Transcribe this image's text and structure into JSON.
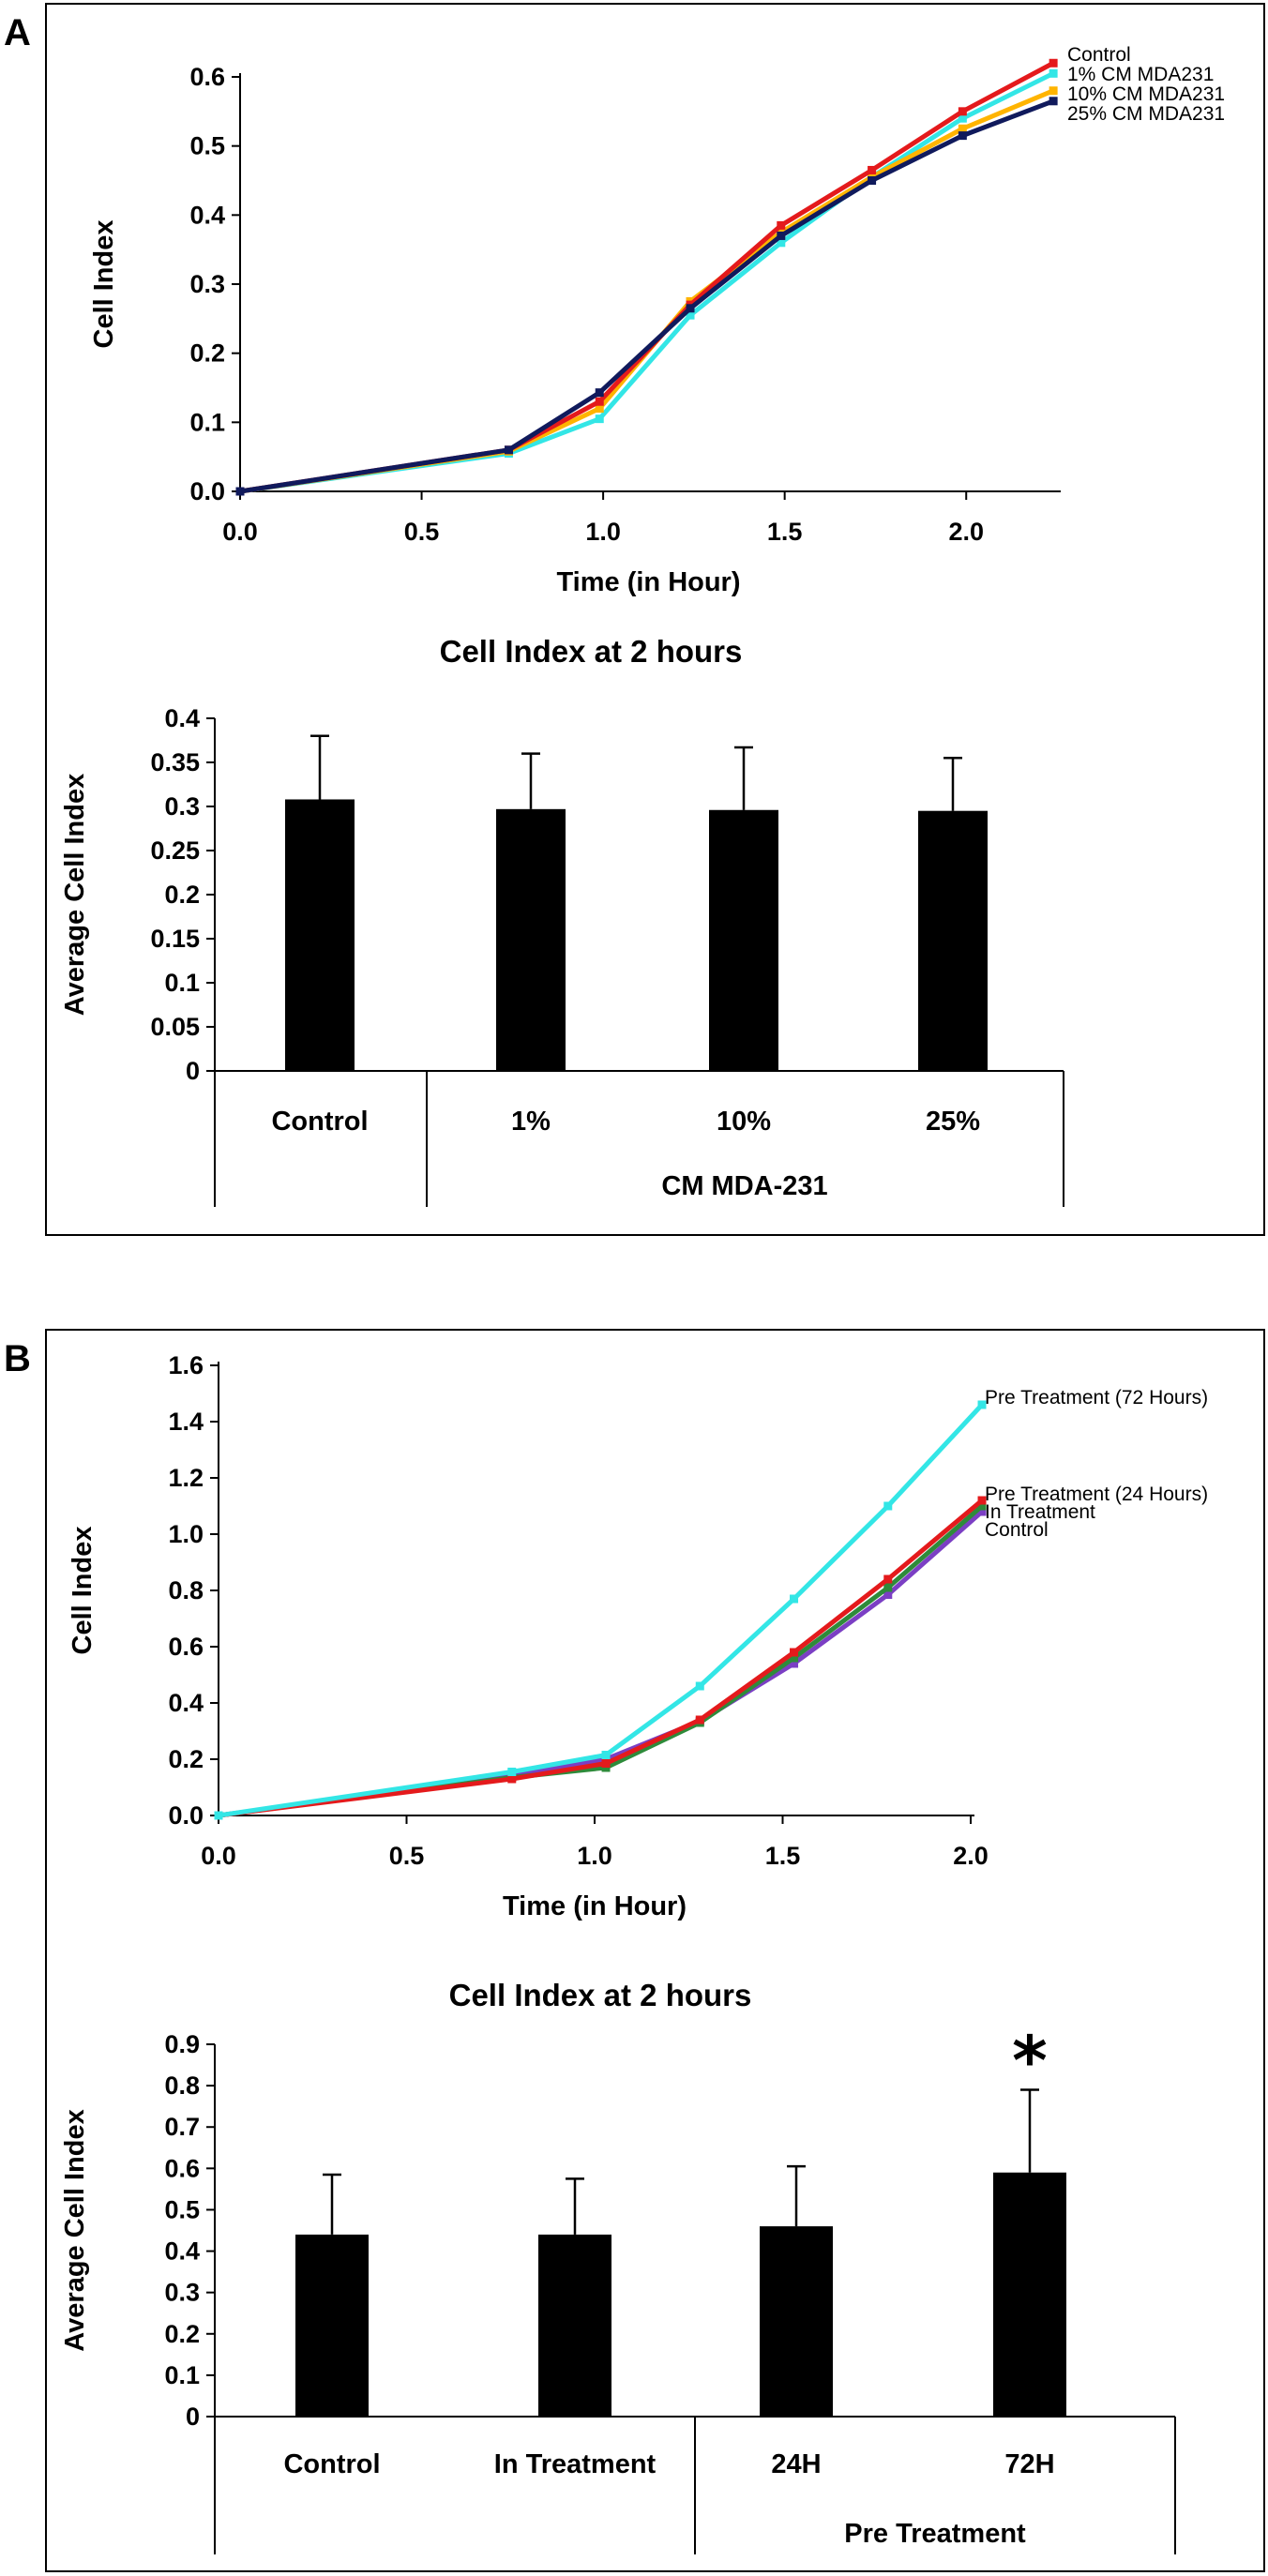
{
  "panel_labels": [
    "A",
    "B"
  ],
  "chart_data": [
    {
      "panel": "A",
      "type": "line",
      "title": "",
      "xlabel": "Time (in Hour)",
      "ylabel": "Cell Index",
      "xlim": [
        0,
        2.25
      ],
      "ylim": [
        0,
        0.6
      ],
      "xticks": [
        "0.0",
        "0.5",
        "1.0",
        "1.5",
        "2.0"
      ],
      "yticks": [
        "0.0",
        "0.1",
        "0.2",
        "0.3",
        "0.4",
        "0.5",
        "0.6"
      ],
      "series": [
        {
          "name": "Control",
          "color": "#e41a1c",
          "x": [
            0,
            0.74,
            0.99,
            1.24,
            1.49,
            1.74,
            1.99,
            2.24
          ],
          "y": [
            0.0,
            0.06,
            0.13,
            0.27,
            0.385,
            0.465,
            0.55,
            0.62
          ]
        },
        {
          "name": "1% CM MDA231",
          "color": "#33e6e6",
          "x": [
            0,
            0.74,
            0.99,
            1.24,
            1.49,
            1.74,
            1.99,
            2.24
          ],
          "y": [
            0.0,
            0.055,
            0.105,
            0.255,
            0.36,
            0.455,
            0.54,
            0.605
          ]
        },
        {
          "name": "10% CM MDA231",
          "color": "#ffb400",
          "x": [
            0,
            0.74,
            0.99,
            1.24,
            1.49,
            1.74,
            1.99,
            2.24
          ],
          "y": [
            0.0,
            0.058,
            0.12,
            0.275,
            0.375,
            0.455,
            0.525,
            0.58
          ]
        },
        {
          "name": "25% CM MDA231",
          "color": "#101a5c",
          "x": [
            0,
            0.74,
            0.99,
            1.24,
            1.49,
            1.74,
            1.99,
            2.24
          ],
          "y": [
            0.0,
            0.06,
            0.143,
            0.265,
            0.37,
            0.45,
            0.515,
            0.565
          ]
        }
      ]
    },
    {
      "panel": "A",
      "type": "bar",
      "title": "Cell Index at 2 hours",
      "xlabel": "",
      "ylabel": "Average Cell Index",
      "ylim": [
        0,
        0.4
      ],
      "yticks": [
        "0",
        "0.05",
        "0.1",
        "0.15",
        "0.2",
        "0.25",
        "0.3",
        "0.35",
        "0.4"
      ],
      "categories": [
        "Control",
        "1%",
        "10%",
        "25%"
      ],
      "values": [
        0.308,
        0.297,
        0.296,
        0.295
      ],
      "errors": [
        0.072,
        0.063,
        0.071,
        0.06
      ],
      "group_labels": [
        "CM MDA-231"
      ]
    },
    {
      "panel": "B",
      "type": "line",
      "title": "",
      "xlabel": "Time (in Hour)",
      "ylabel": "Cell Index",
      "xlim": [
        0,
        2.0
      ],
      "ylim": [
        0,
        1.6
      ],
      "xticks": [
        "0.0",
        "0.5",
        "1.0",
        "1.5",
        "2.0"
      ],
      "yticks": [
        "0.0",
        "0.2",
        "0.4",
        "0.6",
        "0.8",
        "1.0",
        "1.2",
        "1.4",
        "1.6"
      ],
      "series": [
        {
          "name": "Pre Treatment (72 Hours)",
          "color": "#33e6e6",
          "x": [
            0,
            0.78,
            1.03,
            1.28,
            1.53,
            1.78,
            2.03
          ],
          "y": [
            0.0,
            0.155,
            0.215,
            0.46,
            0.77,
            1.1,
            1.46
          ]
        },
        {
          "name": "Pre Treatment (24 Hours)",
          "color": "#e41a1c",
          "x": [
            0,
            0.78,
            1.03,
            1.28,
            1.53,
            1.78,
            2.03
          ],
          "y": [
            0.0,
            0.13,
            0.185,
            0.34,
            0.58,
            0.84,
            1.12
          ]
        },
        {
          "name": "In Treatment",
          "color": "#2e8b3a",
          "x": [
            0,
            0.78,
            1.03,
            1.28,
            1.53,
            1.78,
            2.03
          ],
          "y": [
            0.0,
            0.135,
            0.17,
            0.33,
            0.56,
            0.81,
            1.1
          ]
        },
        {
          "name": "Control",
          "color": "#7b3fc4",
          "x": [
            0,
            0.78,
            1.03,
            1.28,
            1.53,
            1.78,
            2.03
          ],
          "y": [
            0.0,
            0.14,
            0.2,
            0.335,
            0.54,
            0.785,
            1.08
          ]
        }
      ]
    },
    {
      "panel": "B",
      "type": "bar",
      "title": "Cell Index at 2 hours",
      "xlabel": "",
      "ylabel": "Average Cell Index",
      "ylim": [
        0,
        0.9
      ],
      "yticks": [
        "0",
        "0.1",
        "0.2",
        "0.3",
        "0.4",
        "0.5",
        "0.6",
        "0.7",
        "0.8",
        "0.9"
      ],
      "categories": [
        "Control",
        "In Treatment",
        "24H",
        "72H"
      ],
      "values": [
        0.44,
        0.44,
        0.46,
        0.59
      ],
      "errors": [
        0.145,
        0.135,
        0.145,
        0.2
      ],
      "group_labels": [
        "Pre Treatment"
      ],
      "annotations": [
        "*"
      ]
    }
  ]
}
